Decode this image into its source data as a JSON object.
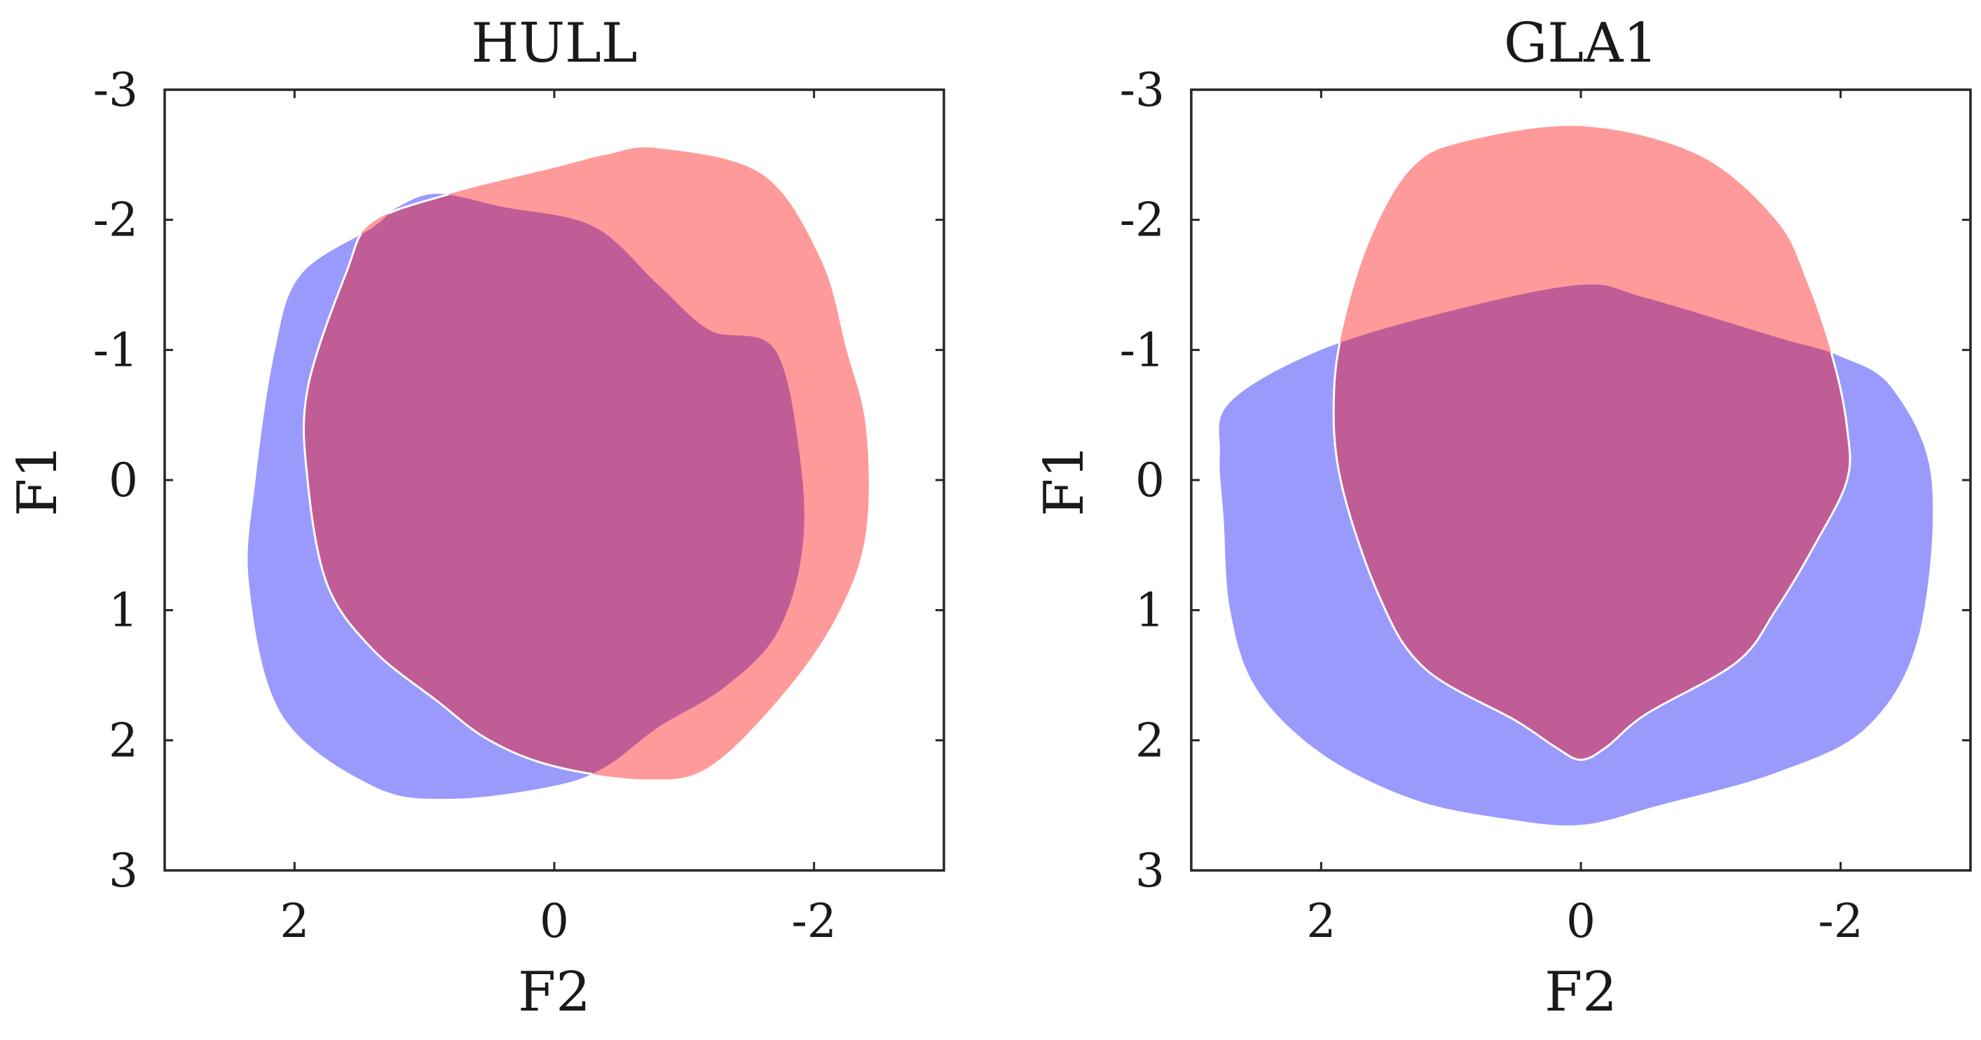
{
  "chart_data": [
    {
      "type": "area",
      "title": "HULL",
      "xlabel": "F2",
      "ylabel": "F1",
      "xlim": [
        3,
        -3
      ],
      "ylim": [
        -3,
        3
      ],
      "x_reversed": true,
      "y_reversed": true,
      "xticks": [
        2,
        0,
        -2
      ],
      "xtick_labels": [
        "2",
        "0",
        "-2"
      ],
      "yticks": [
        -3,
        -2,
        -1,
        0,
        1,
        2,
        3
      ],
      "ytick_labels": [
        "-3",
        "-2",
        "-1",
        "0",
        "1",
        "2",
        "3"
      ],
      "grid": false,
      "series": [
        {
          "color": "#9a9afd",
          "points": [
            [
              1.4,
              -1.94
            ],
            [
              1.95,
              -1.58
            ],
            [
              2.15,
              -1.0
            ],
            [
              2.3,
              0.0
            ],
            [
              2.35,
              0.8
            ],
            [
              2.1,
              1.8
            ],
            [
              1.4,
              2.35
            ],
            [
              0.8,
              2.45
            ],
            [
              0.0,
              2.35
            ],
            [
              -0.4,
              2.2
            ],
            [
              -0.8,
              1.9
            ],
            [
              -1.3,
              1.6
            ],
            [
              -1.7,
              1.2
            ],
            [
              -1.9,
              0.6
            ],
            [
              -1.9,
              -0.1
            ],
            [
              -1.7,
              -1.0
            ],
            [
              -1.2,
              -1.15
            ],
            [
              -0.8,
              -1.5
            ],
            [
              -0.3,
              -1.95
            ],
            [
              0.4,
              -2.1
            ],
            [
              0.9,
              -2.2
            ],
            [
              1.2,
              -2.1
            ]
          ]
        },
        {
          "color": "#fe9a9a",
          "points": [
            [
              -0.8,
              -2.55
            ],
            [
              -1.6,
              -2.35
            ],
            [
              -2.05,
              -1.7
            ],
            [
              -2.25,
              -1.0
            ],
            [
              -2.4,
              -0.4
            ],
            [
              -2.4,
              0.4
            ],
            [
              -2.2,
              1.0
            ],
            [
              -1.8,
              1.6
            ],
            [
              -1.2,
              2.2
            ],
            [
              -0.7,
              2.3
            ],
            [
              0.0,
              2.2
            ],
            [
              0.5,
              2.0
            ],
            [
              0.9,
              1.7
            ],
            [
              1.4,
              1.3
            ],
            [
              1.75,
              0.8
            ],
            [
              1.9,
              0.0
            ],
            [
              1.9,
              -0.7
            ],
            [
              1.6,
              -1.6
            ],
            [
              1.4,
              -1.98
            ],
            [
              0.8,
              -2.2
            ],
            [
              0.0,
              -2.4
            ],
            [
              -0.4,
              -2.5
            ]
          ]
        }
      ]
    },
    {
      "type": "area",
      "title": "GLA1",
      "xlabel": "F2",
      "ylabel": "F1",
      "xlim": [
        3,
        -3
      ],
      "ylim": [
        -3,
        3
      ],
      "x_reversed": true,
      "y_reversed": true,
      "xticks": [
        2,
        0,
        -2
      ],
      "xtick_labels": [
        "2",
        "0",
        "-2"
      ],
      "yticks": [
        -3,
        -2,
        -1,
        0,
        1,
        2,
        3
      ],
      "ytick_labels": [
        "-3",
        "-2",
        "-1",
        "0",
        "1",
        "2",
        "3"
      ],
      "grid": false,
      "series": [
        {
          "color": "#9a9afd",
          "points": [
            [
              2.7,
              -0.6
            ],
            [
              2.0,
              -1.0
            ],
            [
              1.0,
              -1.3
            ],
            [
              0.0,
              -1.5
            ],
            [
              -0.5,
              -1.4
            ],
            [
              -1.5,
              -1.1
            ],
            [
              -2.0,
              -0.95
            ],
            [
              -2.4,
              -0.7
            ],
            [
              -2.7,
              0.0
            ],
            [
              -2.6,
              1.2
            ],
            [
              -2.2,
              1.9
            ],
            [
              -1.5,
              2.25
            ],
            [
              -0.6,
              2.5
            ],
            [
              0.0,
              2.65
            ],
            [
              0.6,
              2.6
            ],
            [
              1.3,
              2.45
            ],
            [
              2.0,
              2.1
            ],
            [
              2.5,
              1.6
            ],
            [
              2.7,
              1.0
            ],
            [
              2.75,
              0.3
            ],
            [
              2.78,
              -0.2
            ]
          ]
        },
        {
          "color": "#fe9a9a",
          "points": [
            [
              1.3,
              -2.4
            ],
            [
              0.9,
              -2.6
            ],
            [
              0.0,
              -2.72
            ],
            [
              -0.9,
              -2.5
            ],
            [
              -1.5,
              -2.0
            ],
            [
              -1.75,
              -1.5
            ],
            [
              -1.95,
              -0.9
            ],
            [
              -2.05,
              -0.4
            ],
            [
              -2.05,
              0.0
            ],
            [
              -1.8,
              0.5
            ],
            [
              -1.5,
              1.0
            ],
            [
              -1.2,
              1.4
            ],
            [
              -0.5,
              1.8
            ],
            [
              -0.2,
              2.05
            ],
            [
              0.0,
              2.15
            ],
            [
              0.2,
              2.05
            ],
            [
              0.5,
              1.85
            ],
            [
              1.2,
              1.45
            ],
            [
              1.55,
              0.9
            ],
            [
              1.85,
              0.0
            ],
            [
              1.9,
              -0.7
            ],
            [
              1.8,
              -1.3
            ],
            [
              1.6,
              -1.9
            ]
          ]
        }
      ]
    }
  ]
}
